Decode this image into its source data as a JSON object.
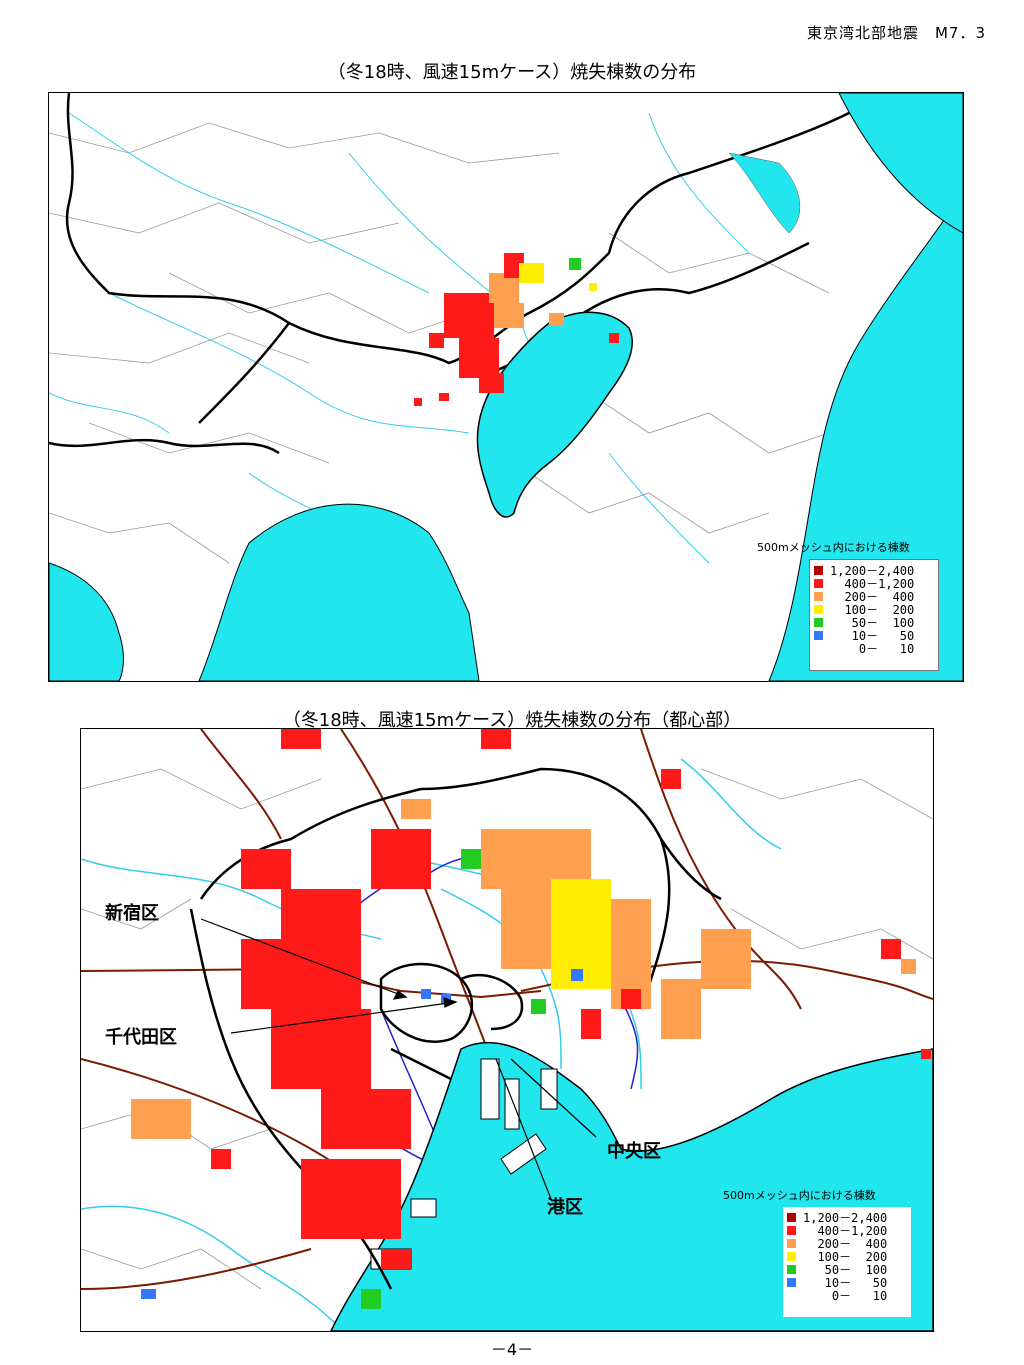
{
  "header": {
    "earthquake_label": "東京湾北部地震　M7．3"
  },
  "maps": {
    "regional": {
      "title": "（冬18時、風速15mケース）焼失棟数の分布"
    },
    "central": {
      "title": "（冬18時、風速15mケース）焼失棟数の分布（都心部）"
    }
  },
  "legend": {
    "title": "500mメッシュ内における棟数",
    "items": [
      {
        "label": "1,200－2,400",
        "color": "#b00000"
      },
      {
        "label": "  400－1,200",
        "color": "#ff1a1a"
      },
      {
        "label": "  200－  400",
        "color": "#ffa050"
      },
      {
        "label": "  100－  200",
        "color": "#ffee00"
      },
      {
        "label": "   50－  100",
        "color": "#22cc22"
      },
      {
        "label": "   10－   50",
        "color": "#3377ff"
      },
      {
        "label": "    0－   10",
        "color": "#ffffff"
      }
    ]
  },
  "colors": {
    "water": "#22e6ee",
    "river": "#33ccee",
    "rail": "#7a1a00",
    "ward_line": "#2222cc"
  },
  "ward_labels": {
    "shinjuku": "新宿区",
    "chiyoda": "千代田区",
    "chuo": "中央区",
    "minato": "港区"
  },
  "footer": {
    "page_number": "－4－"
  }
}
